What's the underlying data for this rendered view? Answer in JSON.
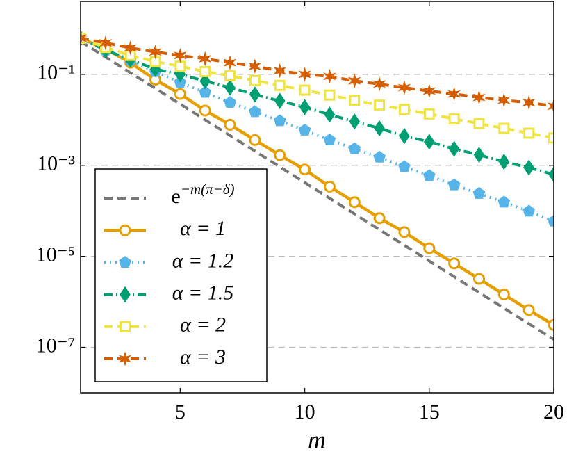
{
  "chart_data": {
    "type": "line",
    "xlabel": "m",
    "x": [
      1,
      2,
      3,
      4,
      5,
      6,
      7,
      8,
      9,
      10,
      11,
      12,
      13,
      14,
      15,
      16,
      17,
      18,
      19,
      20
    ],
    "xlim": [
      1,
      20
    ],
    "xticks": [
      5,
      10,
      15,
      20
    ],
    "ylim": [
      1e-08,
      4
    ],
    "log_y": true,
    "grid": true,
    "legend": "lower left",
    "yticks": [
      {
        "value": 0.1,
        "label": "10⁻¹"
      },
      {
        "value": 0.001,
        "label": "10⁻³"
      },
      {
        "value": 1e-05,
        "label": "10⁻⁵"
      },
      {
        "value": 1e-07,
        "label": "10⁻⁷"
      }
    ],
    "series": [
      {
        "name": "e−m(π−δ)",
        "color": "#777777",
        "linestyle": "dashed",
        "marker": "none",
        "values": [
          0.531,
          0.24,
          0.108,
          0.049,
          0.0222,
          0.01,
          0.00453,
          0.00205,
          0.000926,
          0.000418,
          0.000189,
          8.55e-05,
          3.86e-05,
          1.75e-05,
          7.89e-06,
          3.57e-06,
          1.61e-06,
          7.28e-07,
          3.29e-07,
          1.49e-07
        ]
      },
      {
        "name": "α = 1",
        "color": "#e69f00",
        "linestyle": "solid",
        "marker": "circle",
        "values": [
          0.62,
          0.36,
          0.18,
          0.076,
          0.037,
          0.016,
          0.0078,
          0.0036,
          0.00167,
          0.00081,
          0.00034,
          0.000155,
          6.9e-05,
          3.4e-05,
          1.5e-05,
          7e-06,
          3.2e-06,
          1.45e-06,
          6.6e-07,
          3.1e-07
        ]
      },
      {
        "name": "α = 1.2",
        "color": "#56b4e9",
        "linestyle": "dotted",
        "marker": "pentagon",
        "values": [
          0.62,
          0.34,
          0.2,
          0.115,
          0.066,
          0.04,
          0.024,
          0.015,
          0.0095,
          0.0059,
          0.0036,
          0.0023,
          0.0015,
          0.00093,
          0.00059,
          0.00037,
          0.00024,
          0.000155,
          9.8e-05,
          5.9e-05
        ]
      },
      {
        "name": "α = 1.5",
        "color": "#009e73",
        "linestyle": "dashdot",
        "marker": "diamond",
        "values": [
          0.62,
          0.34,
          0.21,
          0.13,
          0.1,
          0.071,
          0.051,
          0.036,
          0.026,
          0.019,
          0.013,
          0.0092,
          0.0065,
          0.0044,
          0.0033,
          0.0023,
          0.0017,
          0.0012,
          0.00089,
          0.00063
        ]
      },
      {
        "name": "α = 2",
        "color": "#f0e442",
        "linestyle": "dashed",
        "marker": "square",
        "values": [
          0.62,
          0.39,
          0.26,
          0.19,
          0.15,
          0.115,
          0.093,
          0.073,
          0.057,
          0.045,
          0.035,
          0.027,
          0.021,
          0.017,
          0.0135,
          0.0105,
          0.0083,
          0.0065,
          0.0051,
          0.004
        ]
      },
      {
        "name": "α = 3",
        "color": "#d55e00",
        "linestyle": "dashed",
        "marker": "star",
        "values": [
          0.62,
          0.49,
          0.38,
          0.31,
          0.26,
          0.22,
          0.18,
          0.15,
          0.12,
          0.1,
          0.09,
          0.072,
          0.061,
          0.051,
          0.043,
          0.037,
          0.031,
          0.027,
          0.024,
          0.02
        ]
      }
    ]
  }
}
